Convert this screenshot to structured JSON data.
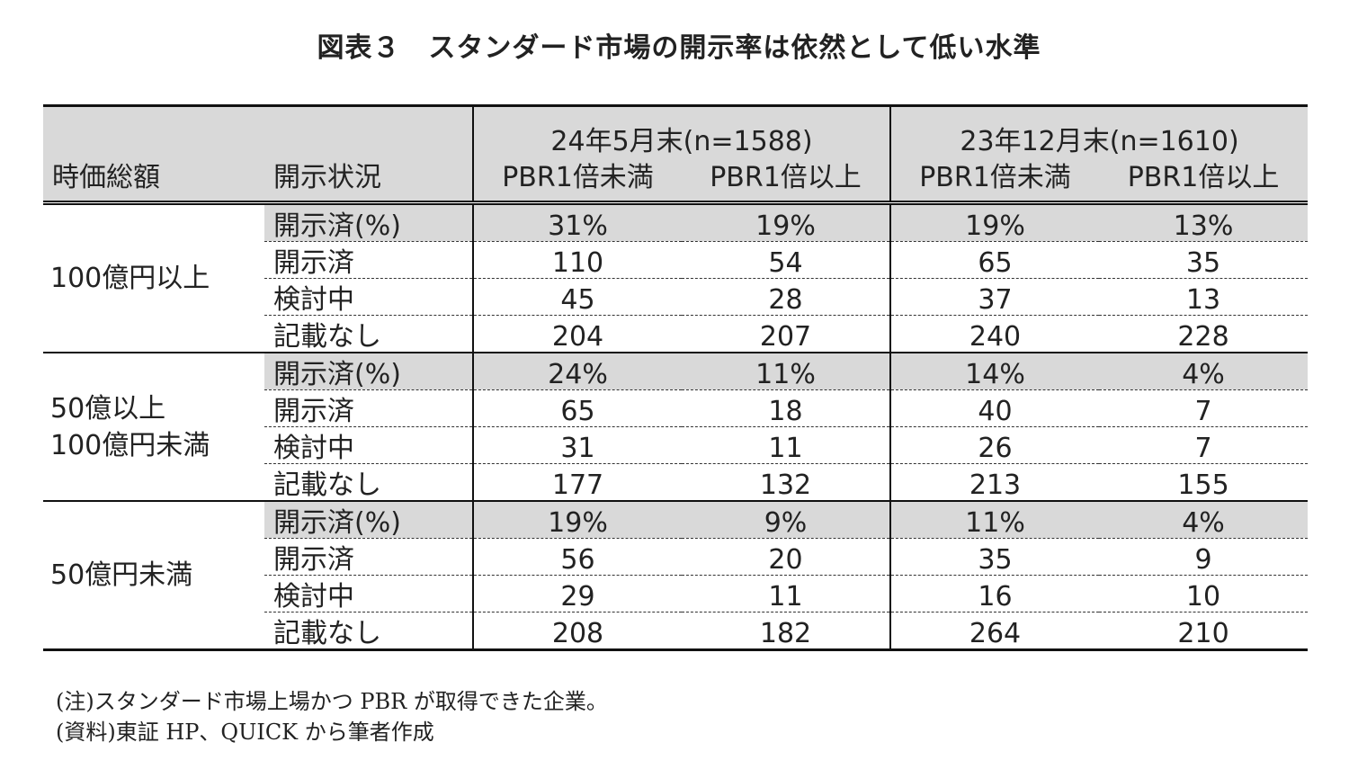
{
  "title": "図表３　スタンダード市場の開示率は依然として低い水準",
  "header": {
    "col_cap_label": "時価総額",
    "col_status_label": "開示状況",
    "period1": "24年5月末(n=1588)",
    "period2": "23年12月末(n=1610)",
    "sub": [
      "PBR1倍未満",
      "PBR1倍以上",
      "PBR1倍未満",
      "PBR1倍以上"
    ]
  },
  "groups": [
    {
      "label_lines": [
        "100億円以上"
      ],
      "rows": [
        {
          "status": "開示済(%)",
          "values": [
            "31%",
            "19%",
            "19%",
            "13%"
          ]
        },
        {
          "status": "開示済",
          "values": [
            "110",
            "54",
            "65",
            "35"
          ]
        },
        {
          "status": "検討中",
          "values": [
            "45",
            "28",
            "37",
            "13"
          ]
        },
        {
          "status": "記載なし",
          "values": [
            "204",
            "207",
            "240",
            "228"
          ]
        }
      ]
    },
    {
      "label_lines": [
        "50億以上",
        "100億円未満"
      ],
      "rows": [
        {
          "status": "開示済(%)",
          "values": [
            "24%",
            "11%",
            "14%",
            "4%"
          ]
        },
        {
          "status": "開示済",
          "values": [
            "65",
            "18",
            "40",
            "7"
          ]
        },
        {
          "status": "検討中",
          "values": [
            "31",
            "11",
            "26",
            "7"
          ]
        },
        {
          "status": "記載なし",
          "values": [
            "177",
            "132",
            "213",
            "155"
          ]
        }
      ]
    },
    {
      "label_lines": [
        "50億円未満"
      ],
      "rows": [
        {
          "status": "開示済(%)",
          "values": [
            "19%",
            "9%",
            "11%",
            "4%"
          ]
        },
        {
          "status": "開示済",
          "values": [
            "56",
            "20",
            "35",
            "9"
          ]
        },
        {
          "status": "検討中",
          "values": [
            "29",
            "11",
            "16",
            "10"
          ]
        },
        {
          "status": "記載なし",
          "values": [
            "208",
            "182",
            "264",
            "210"
          ]
        }
      ]
    }
  ],
  "notes": [
    "(注)スタンダード市場上場かつ PBR が取得できた企業。",
    "(資料)東証 HP、QUICK から筆者作成"
  ]
}
